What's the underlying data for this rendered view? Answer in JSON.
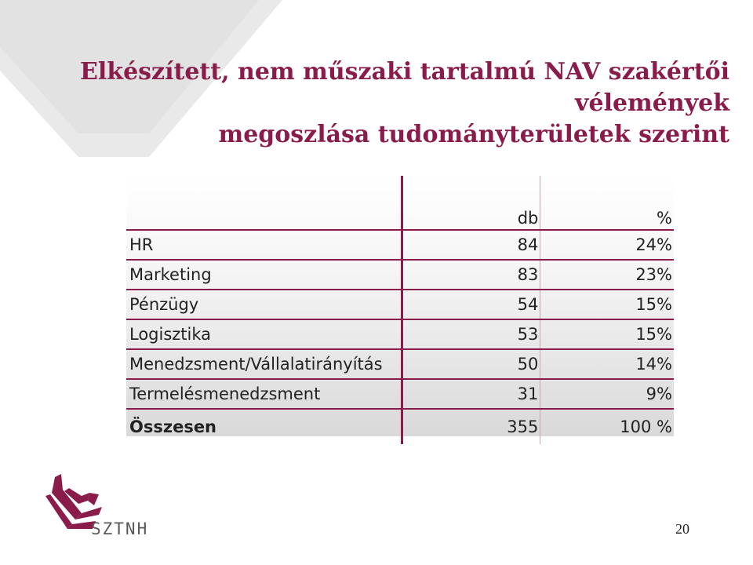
{
  "title": {
    "line1": "Elkészített, nem műszaki tartalmú NAV szakértői vélemények",
    "line2": "megoszlása tudományterületek szerint"
  },
  "table": {
    "header": [
      "",
      "db",
      "%"
    ],
    "rows": [
      {
        "label": "HR",
        "db": "84",
        "pct": "24%"
      },
      {
        "label": "Marketing",
        "db": "83",
        "pct": "23%"
      },
      {
        "label": "Pénzügy",
        "db": "54",
        "pct": "15%"
      },
      {
        "label": "Logisztika",
        "db": "53",
        "pct": "15%"
      },
      {
        "label": "Menedzsment/Vállalatirányítás",
        "db": "50",
        "pct": "14%"
      },
      {
        "label": "Termelésmenedzsment",
        "db": "31",
        "pct": "9%"
      }
    ],
    "total": {
      "label": "Összesen",
      "db": "355",
      "pct": "100 %"
    }
  },
  "logo": {
    "text": "SZTNH",
    "icon": "sztnh-logo-icon"
  },
  "page_number": "20",
  "colors": {
    "accent": "#8a1c4b",
    "background_shape": "#e6e6e6"
  }
}
